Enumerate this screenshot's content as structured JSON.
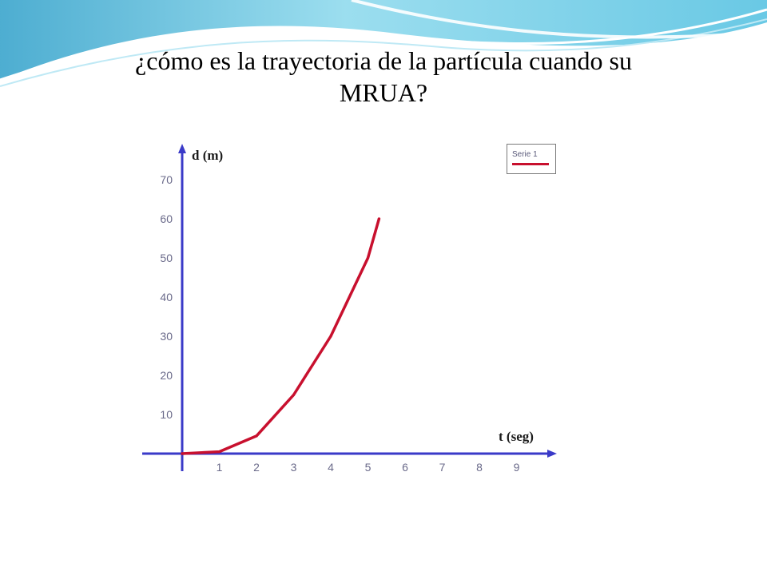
{
  "slide": {
    "title_line1": "¿cómo es la trayectoria de la partícula cuando su",
    "title_line2": "MRUA?"
  },
  "colors": {
    "background": "#ffffff",
    "header_wave": "#7fd3e8",
    "axis": "#3a3ac8",
    "series": "#c8102e"
  },
  "chart_data": {
    "type": "line",
    "xlabel": "t (seg)",
    "ylabel": "d (m)",
    "xlim": [
      0,
      9.8
    ],
    "ylim": [
      0,
      75
    ],
    "x_ticks": [
      "1",
      "2",
      "3",
      "4",
      "5",
      "6",
      "7",
      "8",
      "9"
    ],
    "y_ticks": [
      "10",
      "20",
      "30",
      "40",
      "50",
      "60",
      "70"
    ],
    "grid": false,
    "legend": "top-right",
    "series": [
      {
        "name": "Serie 1",
        "x": [
          0,
          1,
          2,
          3,
          4,
          5,
          5.3
        ],
        "y": [
          0,
          0.5,
          4.5,
          15,
          30,
          50,
          60
        ]
      }
    ]
  }
}
